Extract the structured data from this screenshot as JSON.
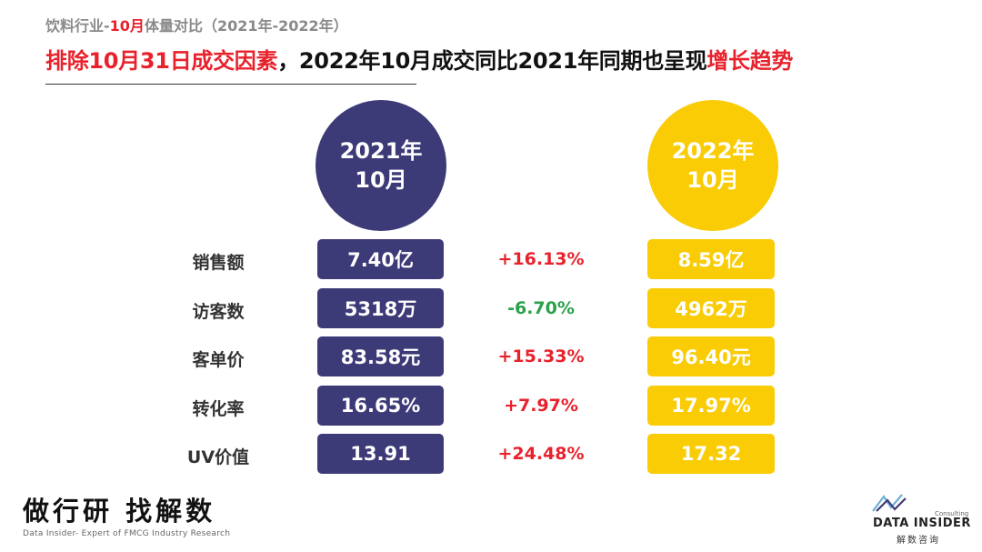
{
  "header": {
    "subtitle_pre": "饮料行业-",
    "subtitle_hl": "10月",
    "subtitle_post": "体量对比（2021年-2022年）",
    "headline_red": "排除10月31日成交因素",
    "headline_mid": "，2022年10月成交同比2021年同期也呈现",
    "headline_red2": "增长趋势"
  },
  "colors": {
    "accent_red": "#e8222c",
    "year_2021": "#3d3a78",
    "year_2022": "#f9cc05",
    "positive": "#e8222c",
    "negative": "#2aa14a"
  },
  "chart_data": {
    "type": "table",
    "title": "饮料行业-10月体量对比（2021年-2022年）",
    "columns": [
      {
        "year_label": "2021年",
        "month_label": "10月"
      },
      {
        "year_label": "2022年",
        "month_label": "10月"
      }
    ],
    "rows": [
      {
        "metric": "销售额",
        "v2021": "7.40亿",
        "v2022": "8.59亿",
        "change": "+16.13%",
        "direction": "up"
      },
      {
        "metric": "访客数",
        "v2021": "5318万",
        "v2022": "4962万",
        "change": "-6.70%",
        "direction": "down"
      },
      {
        "metric": "客单价",
        "v2021": "83.58元",
        "v2022": "96.40元",
        "change": "+15.33%",
        "direction": "up"
      },
      {
        "metric": "转化率",
        "v2021": "16.65%",
        "v2022": "17.97%",
        "change": "+7.97%",
        "direction": "up"
      },
      {
        "metric": "UV价值",
        "v2021": "13.91",
        "v2022": "17.32",
        "change": "+24.48%",
        "direction": "up"
      }
    ]
  },
  "footer": {
    "slogan": "做行研 找解数",
    "slogan_en": "Data Insider- Expert of FMCG Industry Research",
    "logo_consulting": "Consulting",
    "logo_name": "DATA INSIDER",
    "logo_cn": "解数咨询"
  }
}
